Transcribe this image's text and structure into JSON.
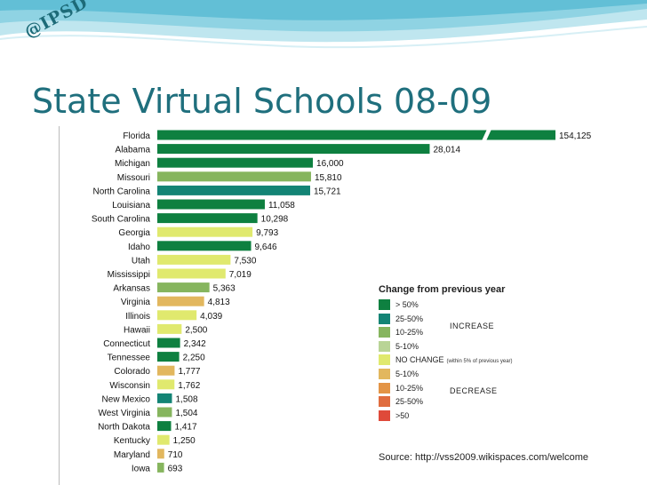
{
  "slide": {
    "title": "State Virtual Schools 08-09",
    "stamp": "@IPSD",
    "source": "Source: http://vss2009.wikispaces.com/welcome"
  },
  "colors": {
    "gt50": "#0e8040",
    "p25_50": "#0f8a4f",
    "p10_25": "#86b55e",
    "p5_10": "#b9d496",
    "nochange": "#e0e96e",
    "d5_10": "#e2b75e",
    "d10_25": "#e39446",
    "d25_50": "#e06d3f",
    "dgt50": "#df4a3a",
    "teal": "#138475"
  },
  "legend": {
    "title": "Change from previous year",
    "increase_label": "INCREASE",
    "decrease_label": "DECREASE",
    "items": [
      {
        "label": "> 50%",
        "color": "#0e8040",
        "note": ""
      },
      {
        "label": "25-50%",
        "color": "#138475",
        "note": ""
      },
      {
        "label": "10-25%",
        "color": "#86b55e",
        "note": ""
      },
      {
        "label": "5-10%",
        "color": "#b9d496",
        "note": ""
      },
      {
        "label": "NO CHANGE",
        "color": "#e0e96e",
        "note": "(within 5% of previous year)"
      },
      {
        "label": "5-10%",
        "color": "#e2b75e",
        "note": ""
      },
      {
        "label": "10-25%",
        "color": "#e39446",
        "note": ""
      },
      {
        "label": "25-50%",
        "color": "#e06d3f",
        "note": ""
      },
      {
        "label": ">50",
        "color": "#df4a3a",
        "note": ""
      }
    ]
  },
  "chart_data": {
    "type": "bar",
    "orientation": "horizontal",
    "axis_break_on_first_bar": true,
    "categories": [
      "Florida",
      "Alabama",
      "Michigan",
      "Missouri",
      "North Carolina",
      "Louisiana",
      "South Carolina",
      "Georgia",
      "Idaho",
      "Utah",
      "Mississippi",
      "Arkansas",
      "Virginia",
      "Illinois",
      "Hawaii",
      "Connecticut",
      "Tennessee",
      "Colorado",
      "Wisconsin",
      "New Mexico",
      "West Virginia",
      "North Dakota",
      "Kentucky",
      "Maryland",
      "Iowa"
    ],
    "values": [
      154125,
      28014,
      16000,
      15810,
      15721,
      11058,
      10298,
      9793,
      9646,
      7530,
      7019,
      5363,
      4813,
      4039,
      2500,
      2342,
      2250,
      1777,
      1762,
      1508,
      1504,
      1417,
      1250,
      710,
      693
    ],
    "value_labels": [
      "154,125",
      "28,014",
      "16,000",
      "15,810",
      "15,721",
      "11,058",
      "10,298",
      "9,793",
      "9,646",
      "7,530",
      "7,019",
      "5,363",
      "4,813",
      "4,039",
      "2,500",
      "2,342",
      "2,250",
      "1,777",
      "1,762",
      "1,508",
      "1,504",
      "1,417",
      "1,250",
      "710",
      "693"
    ],
    "colors": [
      "#0e8040",
      "#0e8040",
      "#0e8040",
      "#86b55e",
      "#138475",
      "#0e8040",
      "#0e8040",
      "#e0e96e",
      "#0e8040",
      "#e0e96e",
      "#e0e96e",
      "#86b55e",
      "#e2b75e",
      "#e0e96e",
      "#e0e96e",
      "#0e8040",
      "#0e8040",
      "#e2b75e",
      "#e0e96e",
      "#138475",
      "#86b55e",
      "#0e8040",
      "#e0e96e",
      "#e2b75e",
      "#86b55e"
    ]
  }
}
